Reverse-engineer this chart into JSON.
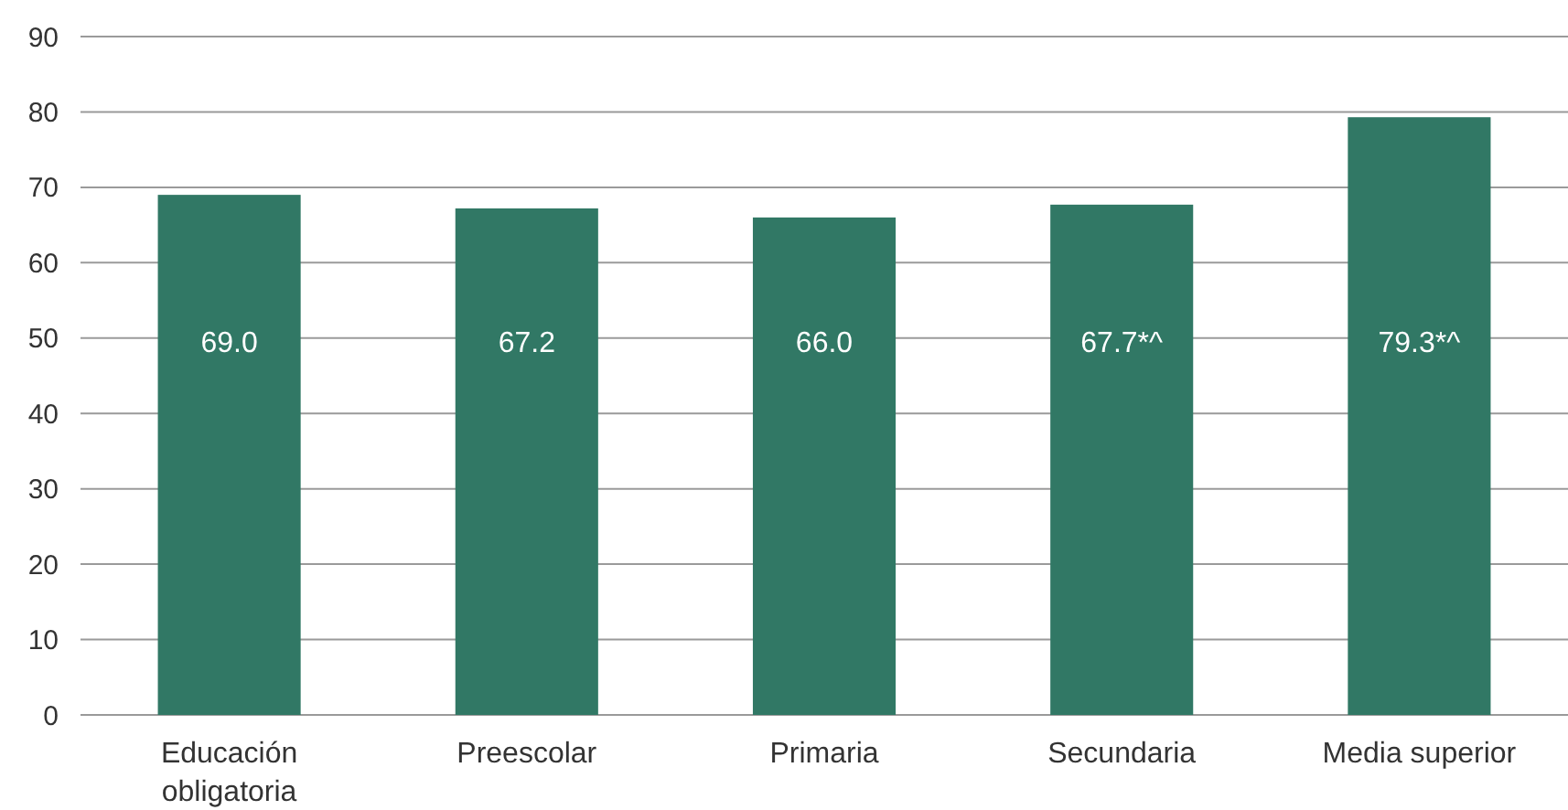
{
  "chart_data": {
    "type": "bar",
    "categories": [
      "Educación obligatoria",
      "Preescolar",
      "Primaria",
      "Secundaria",
      "Media superior"
    ],
    "values": [
      69.0,
      67.2,
      66.0,
      67.7,
      79.3
    ],
    "value_labels": [
      "69.0",
      "67.2",
      "66.0",
      "67.7*^",
      "79.3*^"
    ],
    "color": "#317865",
    "ylim": [
      0,
      90
    ],
    "yticks": [
      0,
      10,
      20,
      30,
      40,
      50,
      60,
      70,
      80,
      90
    ],
    "grid": "y"
  }
}
